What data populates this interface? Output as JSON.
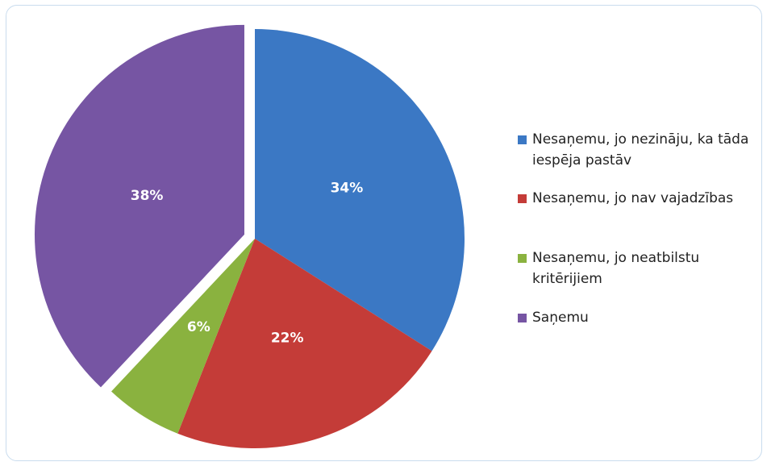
{
  "chart_data": {
    "type": "pie",
    "categories": [
      "Nesaņemu, jo nezināju, ka tāda iespēja pastāv",
      "Nesaņemu, jo nav vajadzības",
      "Nesaņemu, jo neatbilstu kritērijiem",
      "Saņemu"
    ],
    "values": [
      34,
      22,
      6,
      38
    ],
    "value_labels": [
      "34%",
      "22%",
      "6%",
      "38%"
    ],
    "colors": [
      "#3b78c4",
      "#c43c38",
      "#8ab23f",
      "#7655a3"
    ],
    "exploded": [
      false,
      false,
      false,
      true
    ],
    "legend": "right"
  }
}
